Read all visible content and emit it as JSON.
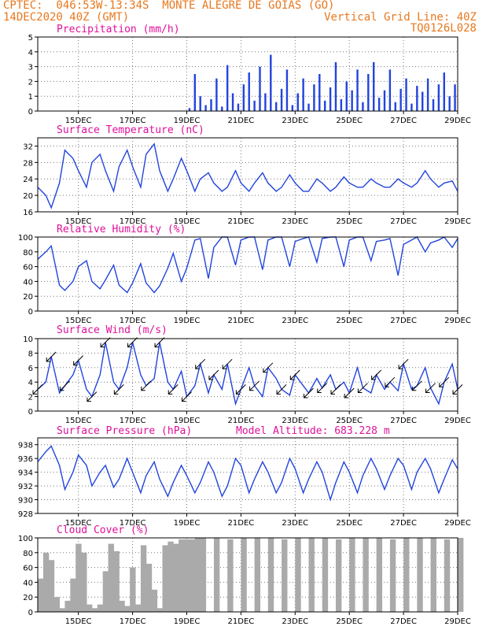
{
  "header": {
    "line1_left": "CPTEC:  046:53W-13:34S  MONTE ALEGRE DE GOIAS (GO)",
    "line2_left": "14DEC2020 40Z (GMT)",
    "line2_right": "Vertical Grid Line: 40Z",
    "line3_right": "TQ0126L028"
  },
  "colors": {
    "header": "#e8781e",
    "title": "#e0109a",
    "line": "#2244dd",
    "bar": "#2244dd",
    "cloud": "#aaaaaa",
    "axis": "#000000",
    "grid": "#777777"
  },
  "x_axis": {
    "start": "14DEC 00Z",
    "end": "29DEC 12Z",
    "ticks": [
      {
        "label": "15DEC",
        "day": 1.5
      },
      {
        "label": "17DEC",
        "day": 3.5
      },
      {
        "label": "19DEC",
        "day": 5.5
      },
      {
        "label": "21DEC",
        "day": 7.5
      },
      {
        "label": "23DEC",
        "day": 9.5
      },
      {
        "label": "25DEC",
        "day": 11.5
      },
      {
        "label": "27DEC",
        "day": 13.5
      },
      {
        "label": "29DEC",
        "day": 15.5
      }
    ]
  },
  "chart_data": [
    {
      "type": "bar",
      "title": "Precipitation (mm/h)",
      "ylim": [
        0,
        5
      ],
      "yticks": [
        "0",
        "1",
        "2",
        "3",
        "4",
        "5"
      ],
      "x_unit": "days since 14DEC 00Z",
      "x": [
        5.6,
        5.8,
        6.0,
        6.2,
        6.4,
        6.6,
        6.8,
        7.0,
        7.2,
        7.4,
        7.6,
        7.8,
        8.0,
        8.2,
        8.4,
        8.6,
        8.8,
        9.0,
        9.2,
        9.4,
        9.6,
        9.8,
        10.0,
        10.2,
        10.4,
        10.6,
        10.8,
        11.0,
        11.2,
        11.4,
        11.6,
        11.8,
        12.0,
        12.2,
        12.4,
        12.6,
        12.8,
        13.0,
        13.2,
        13.4,
        13.6,
        13.8,
        14.0,
        14.2,
        14.4,
        14.6,
        14.8,
        15.0,
        15.2,
        15.4
      ],
      "values": [
        0.2,
        2.5,
        1.0,
        0.4,
        0.8,
        2.2,
        0.3,
        3.1,
        1.2,
        0.5,
        1.8,
        2.6,
        0.7,
        3.0,
        1.2,
        3.8,
        0.6,
        1.5,
        2.8,
        0.4,
        1.2,
        2.2,
        0.5,
        1.8,
        2.5,
        0.7,
        1.6,
        3.3,
        0.8,
        2.0,
        1.4,
        2.8,
        0.6,
        2.5,
        3.3,
        0.9,
        1.4,
        2.8,
        0.6,
        1.5,
        2.2,
        0.5,
        1.7,
        1.3,
        2.2,
        0.8,
        1.8,
        2.6,
        1.0,
        1.8
      ]
    },
    {
      "type": "line",
      "title": "Surface Temperature (nC)",
      "ylim": [
        16,
        34
      ],
      "yticks": [
        "16",
        "20",
        "24",
        "28",
        "32"
      ],
      "x_unit": "days since 14DEC 00Z",
      "x": [
        0,
        0.3,
        0.5,
        0.8,
        1.0,
        1.3,
        1.5,
        1.8,
        2.0,
        2.3,
        2.5,
        2.8,
        3.0,
        3.3,
        3.5,
        3.8,
        4.0,
        4.3,
        4.5,
        4.8,
        5.0,
        5.3,
        5.5,
        5.8,
        6.0,
        6.3,
        6.5,
        6.8,
        7.0,
        7.3,
        7.5,
        7.8,
        8.0,
        8.3,
        8.5,
        8.8,
        9.0,
        9.3,
        9.5,
        9.8,
        10.0,
        10.3,
        10.5,
        10.8,
        11.0,
        11.3,
        11.5,
        11.8,
        12.0,
        12.3,
        12.5,
        12.8,
        13.0,
        13.3,
        13.5,
        13.8,
        14.0,
        14.3,
        14.5,
        14.8,
        15.0,
        15.3,
        15.5
      ],
      "values": [
        22,
        20,
        17,
        23,
        31,
        29,
        26,
        22,
        28,
        30,
        26,
        21,
        27,
        31,
        27,
        22,
        30,
        32.5,
        26,
        21,
        24,
        29,
        26,
        21,
        24,
        25.5,
        23,
        21,
        22,
        26,
        23,
        21,
        23,
        25.5,
        23,
        21,
        22,
        25,
        23,
        21,
        21,
        24,
        23,
        21,
        22,
        24.5,
        23,
        22,
        22,
        24,
        23,
        22,
        22,
        24,
        23,
        22,
        23,
        26,
        24,
        22,
        23,
        23.5,
        21
      ]
    },
    {
      "type": "line",
      "title": "Relative Humidity (%)",
      "ylim": [
        0,
        100
      ],
      "yticks": [
        "0",
        "20",
        "40",
        "60",
        "80",
        "100"
      ],
      "x_unit": "days since 14DEC 00Z",
      "x": [
        0,
        0.3,
        0.5,
        0.8,
        1.0,
        1.3,
        1.5,
        1.8,
        2.0,
        2.3,
        2.5,
        2.8,
        3.0,
        3.3,
        3.5,
        3.8,
        4.0,
        4.3,
        4.5,
        4.8,
        5.0,
        5.3,
        5.5,
        5.8,
        6.0,
        6.3,
        6.5,
        6.8,
        7.0,
        7.3,
        7.5,
        7.8,
        8.0,
        8.3,
        8.5,
        8.8,
        9.0,
        9.3,
        9.5,
        9.8,
        10.0,
        10.3,
        10.5,
        10.8,
        11.0,
        11.3,
        11.5,
        11.8,
        12.0,
        12.3,
        12.5,
        12.8,
        13.0,
        13.3,
        13.5,
        13.8,
        14.0,
        14.3,
        14.5,
        14.8,
        15.0,
        15.3,
        15.5
      ],
      "values": [
        70,
        80,
        88,
        35,
        28,
        40,
        60,
        68,
        40,
        30,
        42,
        62,
        35,
        25,
        38,
        64,
        38,
        25,
        34,
        58,
        78,
        40,
        58,
        96,
        98,
        44,
        86,
        100,
        100,
        62,
        96,
        100,
        100,
        56,
        96,
        100,
        100,
        60,
        94,
        98,
        100,
        66,
        98,
        100,
        100,
        60,
        96,
        100,
        100,
        68,
        94,
        96,
        98,
        48,
        90,
        96,
        100,
        80,
        92,
        96,
        100,
        86,
        98
      ]
    },
    {
      "type": "line",
      "title": "Surface Wind (m/s)",
      "ylim": [
        0,
        10
      ],
      "yticks": [
        "0",
        "2",
        "4",
        "6",
        "8",
        "10"
      ],
      "x_unit": "days since 14DEC 00Z",
      "x": [
        0,
        0.3,
        0.5,
        0.8,
        1.0,
        1.3,
        1.5,
        1.8,
        2.0,
        2.3,
        2.5,
        2.8,
        3.0,
        3.3,
        3.5,
        3.8,
        4.0,
        4.3,
        4.5,
        4.8,
        5.0,
        5.3,
        5.5,
        5.8,
        6.0,
        6.3,
        6.5,
        6.8,
        7.0,
        7.3,
        7.5,
        7.8,
        8.0,
        8.3,
        8.5,
        8.8,
        9.0,
        9.3,
        9.5,
        9.8,
        10.0,
        10.3,
        10.5,
        10.8,
        11.0,
        11.3,
        11.5,
        11.8,
        12.0,
        12.3,
        12.5,
        12.8,
        13.0,
        13.3,
        13.5,
        13.8,
        14.0,
        14.3,
        14.5,
        14.8,
        15.0,
        15.3,
        15.5
      ],
      "values": [
        3,
        4,
        7.5,
        2.5,
        3.5,
        5,
        7,
        3,
        2,
        5,
        9.5,
        4,
        3,
        6,
        9.5,
        5,
        3.5,
        4.5,
        9.5,
        4,
        3,
        5.5,
        2,
        3.5,
        6.5,
        2.5,
        5,
        3,
        6.5,
        1,
        3,
        6,
        3.5,
        2,
        6,
        4.5,
        3,
        2.2,
        5,
        3.5,
        2.5,
        4.5,
        3.2,
        5,
        3,
        4,
        2.5,
        6,
        3.2,
        2.5,
        5,
        3,
        4,
        2.8,
        6.5,
        3,
        3.5,
        6,
        3.2,
        1,
        4,
        6.5,
        3
      ]
    },
    {
      "type": "line",
      "title": "Surface Pressure (hPa)",
      "subtitle": "Model Altitude: 683.228 m",
      "ylim": [
        928,
        939
      ],
      "yticks": [
        "928",
        "930",
        "932",
        "934",
        "936",
        "938"
      ],
      "x_unit": "days since 14DEC 00Z",
      "x": [
        0,
        0.3,
        0.5,
        0.8,
        1.0,
        1.3,
        1.5,
        1.8,
        2.0,
        2.3,
        2.5,
        2.8,
        3.0,
        3.3,
        3.5,
        3.8,
        4.0,
        4.3,
        4.5,
        4.8,
        5.0,
        5.3,
        5.5,
        5.8,
        6.0,
        6.3,
        6.5,
        6.8,
        7.0,
        7.3,
        7.5,
        7.8,
        8.0,
        8.3,
        8.5,
        8.8,
        9.0,
        9.3,
        9.5,
        9.8,
        10.0,
        10.3,
        10.5,
        10.8,
        11.0,
        11.3,
        11.5,
        11.8,
        12.0,
        12.3,
        12.5,
        12.8,
        13.0,
        13.3,
        13.5,
        13.8,
        14.0,
        14.3,
        14.5,
        14.8,
        15.0,
        15.3,
        15.5
      ],
      "values": [
        935.5,
        937,
        937.8,
        935,
        931.5,
        934,
        936.5,
        935,
        932,
        934,
        935,
        931.8,
        933,
        936,
        934,
        931,
        933.5,
        935.5,
        933,
        930.5,
        932.5,
        935,
        933.5,
        931,
        932.5,
        935.5,
        934,
        930.5,
        932,
        936,
        935,
        931,
        933,
        935.5,
        934,
        931,
        932.5,
        936,
        934.5,
        931,
        933,
        935.5,
        934,
        930,
        932.5,
        935.5,
        934,
        931,
        933.5,
        936,
        934.5,
        931.5,
        933.5,
        936,
        935,
        931.5,
        934,
        936,
        934.5,
        931,
        933,
        935.8,
        934.5
      ]
    },
    {
      "type": "area",
      "title": "Cloud Cover (%)",
      "ylim": [
        0,
        100
      ],
      "yticks": [
        "0",
        "20",
        "40",
        "60",
        "80",
        "100"
      ],
      "x_unit": "days since 14DEC 00Z",
      "x": [
        0,
        0.2,
        0.4,
        0.6,
        0.8,
        1.0,
        1.2,
        1.4,
        1.6,
        1.8,
        2.0,
        2.2,
        2.4,
        2.6,
        2.8,
        3.0,
        3.2,
        3.4,
        3.6,
        3.8,
        4.0,
        4.2,
        4.4,
        4.6,
        4.8,
        5.0,
        5.2,
        5.4,
        5.6,
        5.8,
        6.0,
        6.5,
        7.0,
        7.5,
        8.0,
        8.5,
        9.0,
        9.5,
        10.0,
        10.5,
        11.0,
        11.5,
        12.0,
        12.5,
        13.0,
        13.5,
        14.0,
        14.5,
        15.0,
        15.5
      ],
      "values": [
        45,
        80,
        70,
        20,
        5,
        15,
        45,
        92,
        80,
        10,
        5,
        10,
        55,
        92,
        82,
        15,
        8,
        60,
        10,
        90,
        65,
        30,
        5,
        90,
        95,
        92,
        98,
        98,
        98,
        100,
        100,
        100,
        98,
        100,
        100,
        100,
        98,
        100,
        100,
        100,
        98,
        100,
        100,
        100,
        98,
        100,
        100,
        100,
        98,
        100
      ]
    }
  ]
}
